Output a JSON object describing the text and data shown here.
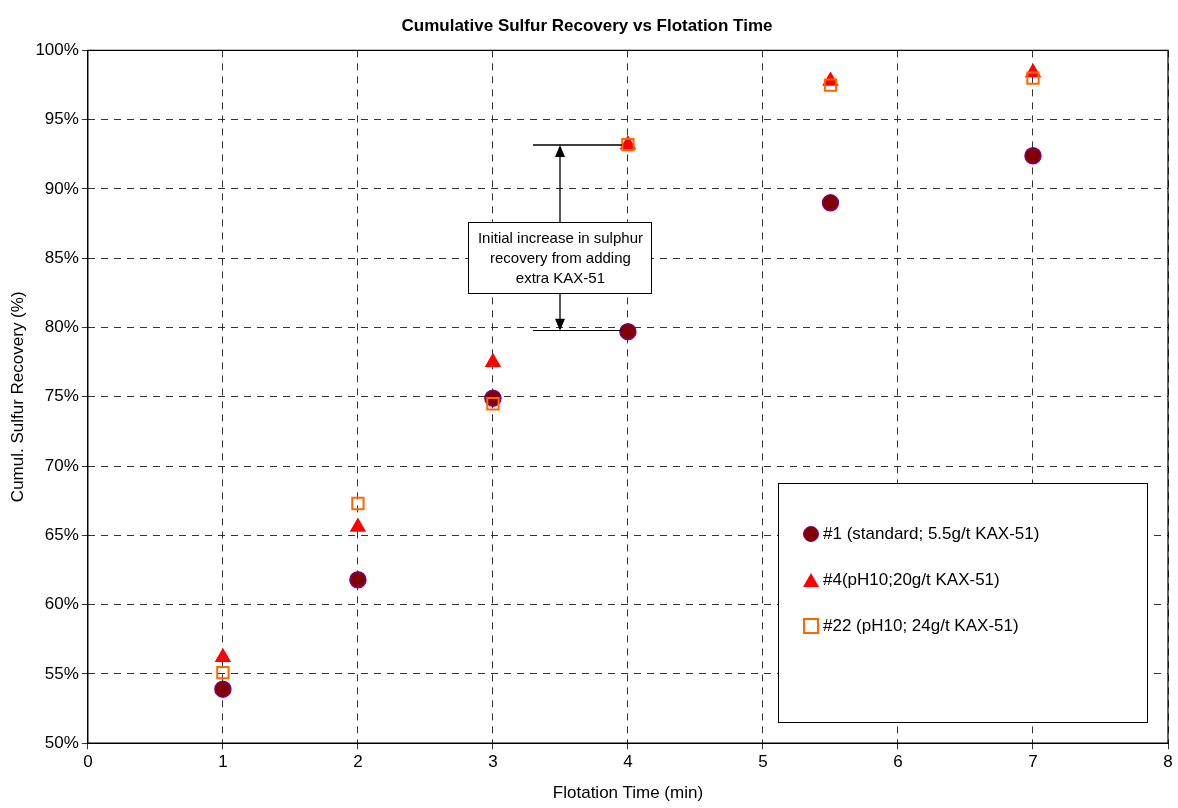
{
  "chart_data": {
    "type": "scatter",
    "title": "Cumulative Sulfur Recovery vs Flotation Time",
    "xlabel": "Flotation Time (min)",
    "ylabel": "Cumul. Sulfur Recovery (%)",
    "x": [
      1,
      2,
      3,
      4,
      5.5,
      7
    ],
    "series": [
      {
        "name": "#1 (standard; 5.5g/t KAX-51)",
        "color": "#800000",
        "marker": "circle",
        "values": [
          53.9,
          61.8,
          74.9,
          79.7,
          89.0,
          92.4
        ]
      },
      {
        "name": "#4(pH10;20g/t KAX-51)",
        "color": "#ff0000",
        "marker": "triangle",
        "values": [
          56.2,
          65.6,
          77.5,
          93.2,
          97.8,
          98.4
        ]
      },
      {
        "name": "#22 (pH10; 24g/t KAX-51)",
        "color": "#ff6600",
        "marker": "square",
        "values": [
          55.1,
          67.3,
          74.5,
          93.2,
          97.5,
          98.0
        ]
      }
    ],
    "xlim": [
      0,
      8
    ],
    "xticks": [
      0,
      1,
      2,
      3,
      4,
      5,
      6,
      7,
      8
    ],
    "ylim": [
      50,
      100
    ],
    "yticks": [
      {
        "value": 50,
        "label": "50%"
      },
      {
        "value": 55,
        "label": "55%"
      },
      {
        "value": 60,
        "label": "60%"
      },
      {
        "value": 65,
        "label": "65%"
      },
      {
        "value": 70,
        "label": "70%"
      },
      {
        "value": 75,
        "label": "75%"
      },
      {
        "value": 80,
        "label": "80%"
      },
      {
        "value": 85,
        "label": "85%"
      },
      {
        "value": 90,
        "label": "90%"
      },
      {
        "value": 95,
        "label": "95%"
      },
      {
        "value": 100,
        "label": "100%"
      }
    ],
    "grid": true,
    "legend": "bottom right",
    "annotations": [
      "Initial increase in sulphur recovery from adding extra KAX-51"
    ]
  }
}
